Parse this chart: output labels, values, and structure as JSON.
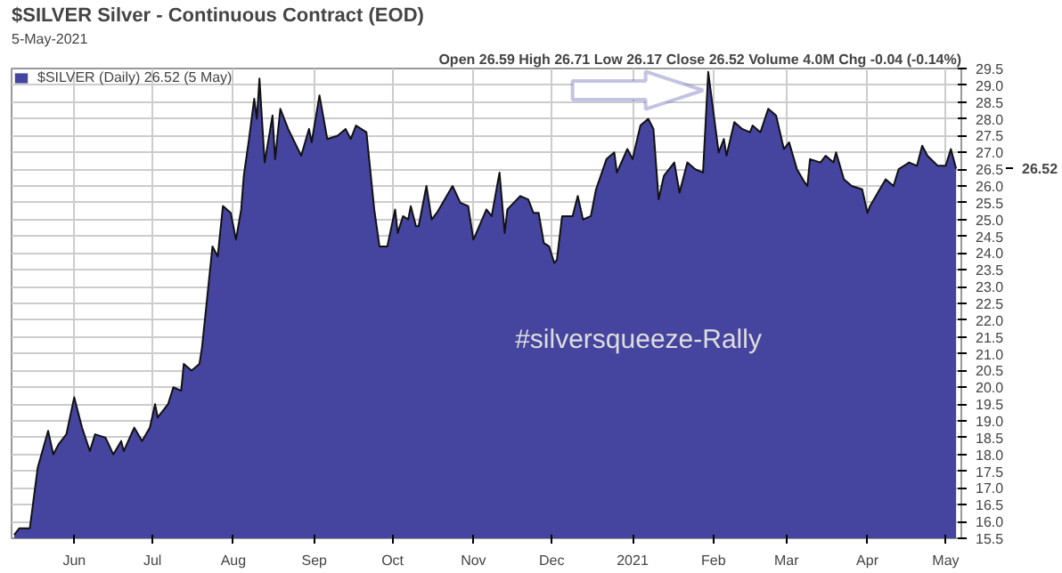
{
  "chart_data": {
    "type": "area",
    "title": "$SILVER Silver - Continuous Contract (EOD)",
    "subtitle": "5-May-2021",
    "annotations": [
      "Open 26.59 High 26.71 Low 26.17 Close 26.52 Volume 4.0M Chg -0.04 (-0.14%)",
      "#silversqueeze-Rally",
      "26.52"
    ],
    "series": [
      {
        "name": "$SILVER (Daily) 26.52 (5 May)",
        "color": "#45459f",
        "x": [
          "2020-05-09",
          "2020-05-11",
          "2020-05-15",
          "2020-05-18",
          "2020-05-22",
          "2020-05-24",
          "2020-05-26",
          "2020-05-29",
          "2020-06-01",
          "2020-06-04",
          "2020-06-07",
          "2020-06-09",
          "2020-06-13",
          "2020-06-16",
          "2020-06-19",
          "2020-06-20",
          "2020-06-24",
          "2020-06-27",
          "2020-06-30",
          "2020-07-02",
          "2020-07-03",
          "2020-07-07",
          "2020-07-09",
          "2020-07-12",
          "2020-07-13",
          "2020-07-16",
          "2020-07-19",
          "2020-07-20",
          "2020-07-24",
          "2020-07-26",
          "2020-07-28",
          "2020-07-31",
          "2020-08-02",
          "2020-08-04",
          "2020-08-05",
          "2020-08-07",
          "2020-08-09",
          "2020-08-10",
          "2020-08-11",
          "2020-08-13",
          "2020-08-16",
          "2020-08-17",
          "2020-08-19",
          "2020-08-22",
          "2020-08-27",
          "2020-08-30",
          "2020-08-31",
          "2020-09-03",
          "2020-09-06",
          "2020-09-10",
          "2020-09-13",
          "2020-09-15",
          "2020-09-17",
          "2020-09-21",
          "2020-09-24",
          "2020-09-26",
          "2020-09-29",
          "2020-10-02",
          "2020-10-03",
          "2020-10-05",
          "2020-10-07",
          "2020-10-08",
          "2020-10-10",
          "2020-10-11",
          "2020-10-14",
          "2020-10-16",
          "2020-10-18",
          "2020-10-24",
          "2020-10-27",
          "2020-10-30",
          "2020-11-01",
          "2020-11-06",
          "2020-11-08",
          "2020-11-11",
          "2020-11-13",
          "2020-11-14",
          "2020-11-19",
          "2020-11-22",
          "2020-11-24",
          "2020-11-26",
          "2020-11-28",
          "2020-11-30",
          "2020-12-02",
          "2020-12-03",
          "2020-12-05",
          "2020-12-09",
          "2020-12-11",
          "2020-12-13",
          "2020-12-16",
          "2020-12-18",
          "2020-12-22",
          "2020-12-25",
          "2020-12-26",
          "2020-12-30",
          "2021-01-01",
          "2021-01-04",
          "2021-01-07",
          "2021-01-09",
          "2021-01-11",
          "2021-01-13",
          "2021-01-17",
          "2021-01-19",
          "2021-01-22",
          "2021-01-25",
          "2021-01-28",
          "2021-01-30",
          "2021-02-03",
          "2021-02-05",
          "2021-02-06",
          "2021-02-09",
          "2021-02-12",
          "2021-02-15",
          "2021-02-16",
          "2021-02-19",
          "2021-02-22",
          "2021-02-25",
          "2021-02-28",
          "2021-03-02",
          "2021-03-05",
          "2021-03-08",
          "2021-03-09",
          "2021-03-10",
          "2021-03-14",
          "2021-03-16",
          "2021-03-19",
          "2021-03-20",
          "2021-03-23",
          "2021-03-26",
          "2021-03-30",
          "2021-04-01",
          "2021-04-02",
          "2021-04-05",
          "2021-04-08",
          "2021-04-11",
          "2021-04-13",
          "2021-04-17",
          "2021-04-20",
          "2021-04-22",
          "2021-04-24",
          "2021-04-28",
          "2021-05-01",
          "2021-05-03",
          "2021-05-05"
        ],
        "values": [
          15.6,
          15.8,
          15.8,
          17.6,
          18.7,
          18.0,
          18.3,
          18.6,
          19.7,
          18.8,
          18.1,
          18.6,
          18.5,
          18.0,
          18.4,
          18.1,
          18.8,
          18.4,
          18.8,
          19.5,
          19.1,
          19.5,
          20.0,
          19.9,
          20.7,
          20.5,
          20.7,
          21.2,
          24.2,
          23.9,
          25.4,
          25.2,
          24.4,
          25.3,
          26.3,
          27.4,
          28.6,
          28.0,
          29.2,
          26.7,
          28.1,
          26.8,
          28.3,
          27.7,
          26.9,
          27.7,
          27.3,
          28.7,
          27.4,
          27.5,
          27.7,
          27.4,
          27.8,
          27.6,
          25.3,
          24.2,
          24.2,
          25.3,
          24.6,
          25.1,
          25.0,
          25.4,
          24.8,
          24.8,
          26.0,
          25.0,
          25.2,
          26.0,
          25.5,
          25.4,
          24.4,
          25.3,
          25.1,
          26.4,
          24.6,
          25.3,
          25.7,
          25.6,
          25.2,
          25.2,
          24.3,
          24.2,
          23.7,
          23.8,
          25.1,
          25.1,
          25.7,
          25.0,
          25.1,
          25.9,
          26.8,
          27.0,
          26.4,
          27.1,
          26.8,
          27.8,
          28.0,
          27.7,
          25.6,
          26.3,
          26.7,
          25.8,
          26.7,
          26.5,
          26.4,
          29.4,
          27.0,
          27.4,
          26.9,
          27.9,
          27.7,
          27.6,
          27.8,
          27.6,
          28.3,
          28.1,
          27.1,
          27.3,
          26.5,
          26.1,
          26.0,
          26.8,
          26.7,
          26.9,
          26.7,
          27.0,
          26.2,
          26.0,
          25.9,
          25.2,
          25.4,
          25.8,
          26.2,
          26.0,
          26.5,
          26.7,
          26.6,
          27.2,
          26.9,
          26.6,
          26.6,
          27.1,
          26.52
        ]
      }
    ],
    "xlim": [
      "2020-05-08",
      "2021-05-07"
    ],
    "xticks": [
      {
        "value": "2020-06-01",
        "label": "Jun"
      },
      {
        "value": "2020-07-01",
        "label": "Jul"
      },
      {
        "value": "2020-08-01",
        "label": "Aug"
      },
      {
        "value": "2020-09-01",
        "label": "Sep"
      },
      {
        "value": "2020-10-01",
        "label": "Oct"
      },
      {
        "value": "2020-11-01",
        "label": "Nov"
      },
      {
        "value": "2020-12-01",
        "label": "Dec"
      },
      {
        "value": "2021-01-01",
        "label": "2021"
      },
      {
        "value": "2021-02-01",
        "label": "Feb"
      },
      {
        "value": "2021-03-01",
        "label": "Mar"
      },
      {
        "value": "2021-04-01",
        "label": "Apr"
      },
      {
        "value": "2021-05-01",
        "label": "May"
      }
    ],
    "ylim": [
      15.5,
      29.5
    ],
    "yticks": [
      {
        "value": 15.5,
        "label": "15.5"
      },
      {
        "value": 16,
        "label": "16.0"
      },
      {
        "value": 16.5,
        "label": "16.5"
      },
      {
        "value": 17,
        "label": "17.0"
      },
      {
        "value": 17.5,
        "label": "17.5"
      },
      {
        "value": 18,
        "label": "18.0"
      },
      {
        "value": 18.5,
        "label": "18.5"
      },
      {
        "value": 19,
        "label": "19.0"
      },
      {
        "value": 19.5,
        "label": "19.5"
      },
      {
        "value": 20,
        "label": "20.0"
      },
      {
        "value": 20.5,
        "label": "20.5"
      },
      {
        "value": 21,
        "label": "21.0"
      },
      {
        "value": 21.5,
        "label": "21.5"
      },
      {
        "value": 22,
        "label": "22.0"
      },
      {
        "value": 22.5,
        "label": "22.5"
      },
      {
        "value": 23,
        "label": "23.0"
      },
      {
        "value": 23.5,
        "label": "23.5"
      },
      {
        "value": 24,
        "label": "24.0"
      },
      {
        "value": 24.5,
        "label": "24.5"
      },
      {
        "value": 25,
        "label": "25.0"
      },
      {
        "value": 25.5,
        "label": "25.5"
      },
      {
        "value": 26,
        "label": "26.0"
      },
      {
        "value": 26.5,
        "label": "26.5"
      },
      {
        "value": 27,
        "label": "27.0"
      },
      {
        "value": 27.5,
        "label": "27.5"
      },
      {
        "value": 28,
        "label": "28.0"
      },
      {
        "value": 28.5,
        "label": "28.5"
      },
      {
        "value": 29,
        "label": "29.0"
      },
      {
        "value": 29.5,
        "label": "29.5"
      }
    ],
    "grid": true,
    "legend": "top left"
  }
}
